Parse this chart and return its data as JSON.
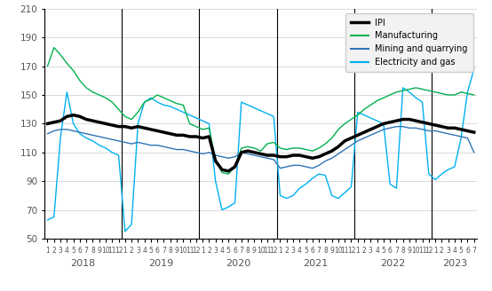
{
  "ipi": [
    130,
    131,
    132,
    135,
    136,
    135,
    133,
    132,
    131,
    130,
    129,
    128,
    128,
    127,
    128,
    127,
    126,
    125,
    124,
    123,
    122,
    122,
    121,
    121,
    120,
    121,
    104,
    98,
    97,
    100,
    110,
    111,
    110,
    109,
    108,
    108,
    107,
    107,
    108,
    108,
    107,
    106,
    107,
    109,
    111,
    114,
    118,
    120,
    122,
    124,
    126,
    128,
    130,
    131,
    132,
    133,
    133,
    132,
    131,
    130,
    129,
    128,
    127,
    127,
    126,
    125,
    124
  ],
  "manufacturing": [
    170,
    183,
    178,
    172,
    167,
    160,
    155,
    152,
    150,
    148,
    145,
    140,
    135,
    133,
    138,
    145,
    147,
    150,
    148,
    146,
    144,
    143,
    130,
    128,
    126,
    127,
    105,
    96,
    95,
    100,
    113,
    114,
    113,
    111,
    116,
    117,
    113,
    112,
    113,
    113,
    112,
    111,
    113,
    116,
    120,
    126,
    130,
    133,
    136,
    140,
    143,
    146,
    148,
    150,
    152,
    153,
    154,
    155,
    154,
    153,
    152,
    151,
    150,
    150,
    152,
    151,
    150
  ],
  "mining": [
    123,
    125,
    126,
    126,
    125,
    124,
    123,
    122,
    121,
    120,
    119,
    118,
    117,
    116,
    117,
    116,
    115,
    115,
    114,
    113,
    112,
    112,
    111,
    110,
    109,
    110,
    108,
    107,
    106,
    107,
    110,
    109,
    108,
    107,
    106,
    105,
    99,
    100,
    101,
    101,
    100,
    99,
    101,
    104,
    106,
    109,
    112,
    115,
    118,
    120,
    122,
    124,
    126,
    127,
    128,
    128,
    127,
    127,
    126,
    125,
    125,
    124,
    123,
    122,
    121,
    120,
    110
  ],
  "electricity": [
    63,
    65,
    120,
    152,
    130,
    123,
    120,
    118,
    115,
    113,
    110,
    108,
    55,
    60,
    130,
    145,
    148,
    145,
    143,
    142,
    140,
    138,
    136,
    134,
    132,
    130,
    90,
    70,
    72,
    75,
    145,
    143,
    141,
    139,
    137,
    135,
    80,
    78,
    80,
    85,
    88,
    92,
    95,
    94,
    80,
    78,
    82,
    86,
    138,
    136,
    134,
    132,
    130,
    88,
    85,
    155,
    152,
    148,
    145,
    95,
    91,
    95,
    98,
    100,
    120,
    152,
    168
  ],
  "ylim": [
    50,
    210
  ],
  "yticks": [
    50,
    70,
    90,
    110,
    130,
    150,
    170,
    190,
    210
  ],
  "years": [
    2018,
    2019,
    2020,
    2021,
    2022,
    2023
  ],
  "legend_labels": [
    "IPI",
    "Manufacturing",
    "Mining and quarrying",
    "Electricity and gas"
  ],
  "ipi_color": "#000000",
  "manufacturing_color": "#00b050",
  "mining_color": "#2e75b6",
  "electricity_color": "#00b0f0",
  "background_color": "#ffffff",
  "plot_bg_color": "#ffffff",
  "legend_bg_color": "#f2f2f2"
}
